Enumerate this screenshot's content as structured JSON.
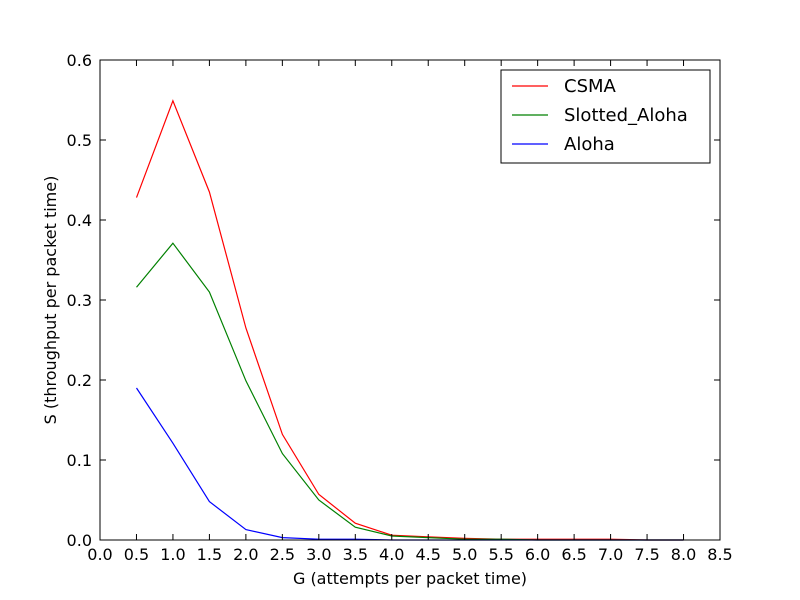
{
  "chart_data": {
    "type": "line",
    "title": "",
    "xlabel": "G (attempts per packet time)",
    "ylabel": "S (throughput per packet time)",
    "xlim": [
      0.0,
      8.5
    ],
    "ylim": [
      0.0,
      0.6
    ],
    "xticks": [
      "0.0",
      "0.5",
      "1.0",
      "1.5",
      "2.0",
      "2.5",
      "3.0",
      "3.5",
      "4.0",
      "4.5",
      "5.0",
      "5.5",
      "6.0",
      "6.5",
      "7.0",
      "7.5",
      "8.0",
      "8.5"
    ],
    "yticks": [
      "0.0",
      "0.1",
      "0.2",
      "0.3",
      "0.4",
      "0.5",
      "0.6"
    ],
    "grid": false,
    "legend_position": "top-right",
    "x": [
      0.5,
      1.0,
      1.5,
      2.0,
      2.5,
      3.0,
      3.5,
      4.0,
      4.5,
      5.0,
      5.5,
      6.0,
      6.5,
      7.0,
      7.5,
      8.0
    ],
    "series": [
      {
        "name": "CSMA",
        "color": "#ff0000",
        "values": [
          0.428,
          0.549,
          0.435,
          0.265,
          0.132,
          0.057,
          0.021,
          0.006,
          0.004,
          0.002,
          0.001,
          0.001,
          0.001,
          0.001,
          0.0,
          0.0
        ]
      },
      {
        "name": "Slotted_Aloha",
        "color": "#008000",
        "values": [
          0.316,
          0.371,
          0.31,
          0.199,
          0.108,
          0.05,
          0.016,
          0.005,
          0.003,
          0.001,
          0.001,
          0.0,
          0.0,
          0.0,
          0.0,
          0.0
        ]
      },
      {
        "name": "Aloha",
        "color": "#0000ff",
        "values": [
          0.19,
          0.121,
          0.048,
          0.013,
          0.003,
          0.001,
          0.001,
          0.0,
          0.0,
          0.0,
          0.0,
          0.0,
          0.0,
          0.0,
          0.0,
          0.0
        ]
      }
    ]
  }
}
